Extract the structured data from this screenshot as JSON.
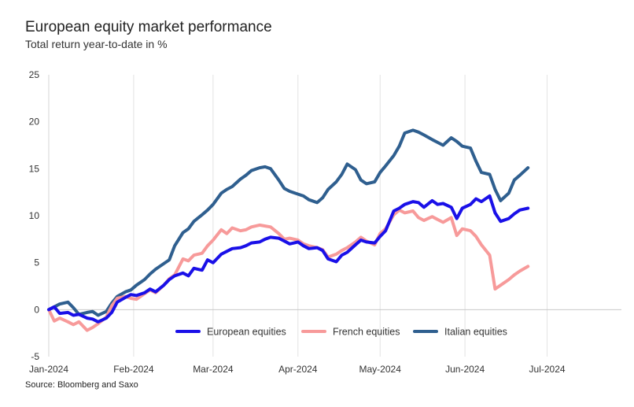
{
  "header": {
    "title": "European equity market performance",
    "subtitle": "Total return year-to-date in %"
  },
  "footer": {
    "source": "Source: Bloomberg and Saxo"
  },
  "chart_data": {
    "type": "line",
    "ylim": [
      -5,
      25
    ],
    "yticks": [
      -5,
      0,
      5,
      10,
      15,
      20,
      25
    ],
    "xlim": [
      "2024-01-01",
      "2024-07-31"
    ],
    "xticks": [
      {
        "date": "2024-01-01",
        "label": "Jan-2024"
      },
      {
        "date": "2024-02-01",
        "label": "Feb-2024"
      },
      {
        "date": "2024-03-01",
        "label": "Mar-2024"
      },
      {
        "date": "2024-04-01",
        "label": "Apr-2024"
      },
      {
        "date": "2024-05-01",
        "label": "May-2024"
      },
      {
        "date": "2024-06-01",
        "label": "Jun-2024"
      },
      {
        "date": "2024-07-01",
        "label": "Jul-2024"
      }
    ],
    "grid": "vertical",
    "legend": "bottom-center",
    "dates": [
      "2024-01-01",
      "2024-01-03",
      "2024-01-05",
      "2024-01-08",
      "2024-01-10",
      "2024-01-12",
      "2024-01-15",
      "2024-01-17",
      "2024-01-19",
      "2024-01-22",
      "2024-01-24",
      "2024-01-26",
      "2024-01-29",
      "2024-01-31",
      "2024-02-02",
      "2024-02-05",
      "2024-02-07",
      "2024-02-09",
      "2024-02-12",
      "2024-02-14",
      "2024-02-16",
      "2024-02-19",
      "2024-02-21",
      "2024-02-23",
      "2024-02-26",
      "2024-02-28",
      "2024-03-01",
      "2024-03-04",
      "2024-03-06",
      "2024-03-08",
      "2024-03-11",
      "2024-03-13",
      "2024-03-15",
      "2024-03-18",
      "2024-03-20",
      "2024-03-22",
      "2024-03-25",
      "2024-03-27",
      "2024-03-29",
      "2024-04-01",
      "2024-04-03",
      "2024-04-05",
      "2024-04-08",
      "2024-04-10",
      "2024-04-12",
      "2024-04-15",
      "2024-04-17",
      "2024-04-19",
      "2024-04-22",
      "2024-04-24",
      "2024-04-26",
      "2024-04-29",
      "2024-05-01",
      "2024-05-03",
      "2024-05-06",
      "2024-05-08",
      "2024-05-10",
      "2024-05-13",
      "2024-05-15",
      "2024-05-17",
      "2024-05-20",
      "2024-05-22",
      "2024-05-24",
      "2024-05-27",
      "2024-05-29",
      "2024-05-31",
      "2024-06-03",
      "2024-06-05",
      "2024-06-07",
      "2024-06-10",
      "2024-06-12",
      "2024-06-14",
      "2024-06-17",
      "2024-06-19",
      "2024-06-21",
      "2024-06-24"
    ],
    "series": [
      {
        "name": "European equities",
        "color": "#1a10e8",
        "values": [
          0.0,
          0.3,
          -0.4,
          -0.3,
          -0.6,
          -0.5,
          -0.9,
          -1.0,
          -1.3,
          -0.9,
          -0.3,
          0.8,
          1.3,
          1.6,
          1.5,
          1.8,
          2.2,
          1.9,
          2.6,
          3.2,
          3.6,
          3.9,
          3.6,
          4.4,
          4.2,
          5.3,
          5.0,
          5.9,
          6.2,
          6.5,
          6.6,
          6.8,
          7.1,
          7.2,
          7.5,
          7.7,
          7.6,
          7.3,
          7.0,
          7.2,
          6.8,
          6.5,
          6.6,
          6.3,
          5.4,
          5.1,
          5.8,
          6.1,
          6.9,
          7.4,
          7.2,
          7.1,
          7.8,
          8.4,
          10.5,
          10.8,
          11.2,
          11.5,
          11.4,
          10.9,
          11.6,
          11.2,
          11.3,
          10.9,
          9.7,
          10.8,
          11.2,
          11.8,
          11.5,
          12.1,
          10.3,
          9.4,
          9.7,
          10.2,
          10.6,
          10.8
        ]
      },
      {
        "name": "French equities",
        "color": "#f79a9a",
        "values": [
          0.0,
          -1.2,
          -0.9,
          -1.3,
          -1.6,
          -1.3,
          -2.2,
          -1.9,
          -1.5,
          -0.8,
          0.4,
          1.2,
          1.4,
          1.2,
          1.1,
          1.7,
          2.1,
          1.8,
          2.6,
          3.3,
          3.7,
          5.4,
          5.2,
          5.8,
          6.0,
          6.8,
          7.4,
          8.5,
          8.1,
          8.7,
          8.4,
          8.5,
          8.8,
          9.0,
          8.9,
          8.8,
          8.1,
          7.5,
          7.6,
          7.4,
          7.0,
          6.8,
          6.6,
          6.4,
          5.6,
          5.9,
          6.3,
          6.6,
          7.2,
          7.7,
          7.3,
          6.9,
          8.1,
          8.6,
          10.1,
          10.6,
          10.3,
          10.5,
          9.8,
          9.5,
          9.9,
          9.6,
          9.3,
          9.8,
          7.9,
          8.6,
          8.4,
          7.8,
          6.9,
          5.8,
          2.2,
          2.6,
          3.2,
          3.7,
          4.1,
          4.6
        ]
      },
      {
        "name": "Italian equities",
        "color": "#2f5f8f",
        "values": [
          0.0,
          0.3,
          0.6,
          0.8,
          0.2,
          -0.5,
          -0.3,
          -0.2,
          -0.6,
          -0.2,
          0.7,
          1.4,
          1.9,
          2.1,
          2.6,
          3.2,
          3.8,
          4.3,
          4.9,
          5.3,
          6.8,
          8.2,
          8.6,
          9.4,
          10.1,
          10.6,
          11.2,
          12.4,
          12.8,
          13.1,
          13.9,
          14.3,
          14.8,
          15.1,
          15.2,
          15.0,
          13.8,
          12.9,
          12.6,
          12.3,
          12.1,
          11.7,
          11.4,
          11.9,
          12.8,
          13.6,
          14.4,
          15.5,
          14.9,
          13.8,
          13.4,
          13.6,
          14.6,
          15.3,
          16.4,
          17.4,
          18.8,
          19.1,
          18.9,
          18.6,
          18.1,
          17.8,
          17.5,
          18.3,
          17.9,
          17.4,
          17.2,
          15.8,
          14.6,
          14.4,
          12.8,
          11.6,
          12.4,
          13.8,
          14.3,
          15.1
        ]
      }
    ]
  }
}
